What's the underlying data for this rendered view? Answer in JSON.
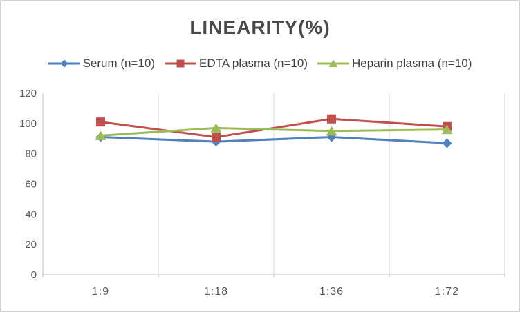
{
  "window": {
    "background": "#ffffff",
    "border_color": "#d2d2d2"
  },
  "chart_data": {
    "type": "line",
    "title": "LINEARITY(%)",
    "categories": [
      "1:9",
      "1:18",
      "1:36",
      "1:72"
    ],
    "series": [
      {
        "name": "Serum (n=10)",
        "marker": "diamond",
        "color": "#4F81BD",
        "values": [
          91,
          88,
          91,
          87
        ]
      },
      {
        "name": "EDTA plasma (n=10)",
        "marker": "square",
        "color": "#C0504D",
        "values": [
          101,
          91,
          103,
          98
        ]
      },
      {
        "name": "Heparin plasma (n=10)",
        "marker": "triangle",
        "color": "#9BBB59",
        "values": [
          92,
          97,
          95,
          96
        ]
      }
    ],
    "xlabel": "",
    "ylabel": "",
    "ylim": [
      0,
      120
    ],
    "yticks": [
      0,
      20,
      40,
      60,
      80,
      100,
      120
    ],
    "grid": "vertical-major-only",
    "legend_position": "top",
    "styles": {
      "title_color": "#4a4a4a",
      "legend_text_color": "#404040",
      "tick_label_color": "#595959",
      "axis_color": "#bfbfbf",
      "gridline_color": "#d9d9d9",
      "line_width": 3
    }
  }
}
